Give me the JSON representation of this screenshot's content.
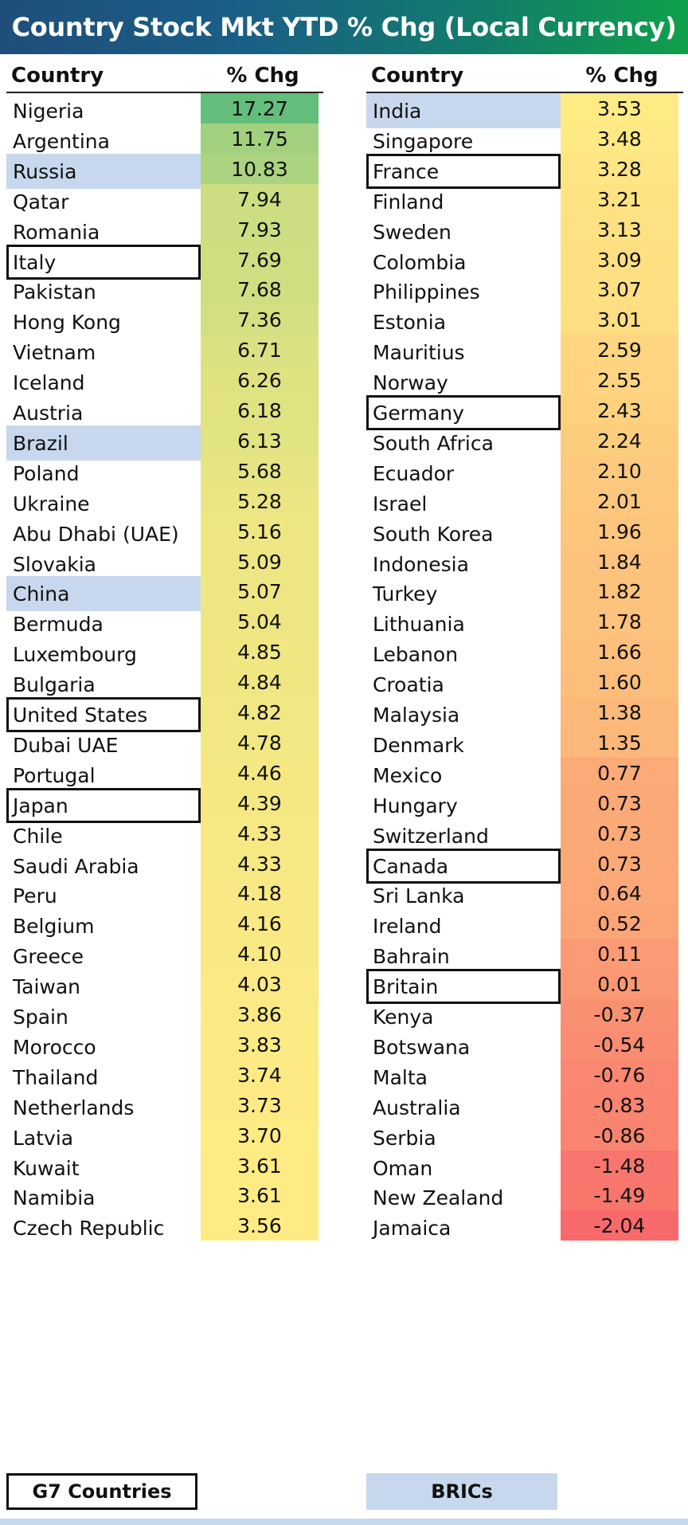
{
  "title": "Country Stock Mkt YTD % Chg (Local Currency)",
  "headers": {
    "country": "Country",
    "change": "% Chg"
  },
  "legend": {
    "g7": "G7 Countries",
    "brics": "BRICs"
  },
  "colors": {
    "high": "#63be7b",
    "mid": "#ffeb84",
    "low": "#f8696b",
    "brics": "#c7d8ee"
  },
  "chart_data": {
    "type": "table",
    "title": "Country Stock Mkt YTD % Chg (Local Currency)",
    "columns": [
      "Country",
      "% Chg"
    ],
    "color_scale": {
      "min": -2.04,
      "mid": 3.55,
      "max": 17.27
    },
    "left": [
      {
        "country": "Nigeria",
        "value": "17.27"
      },
      {
        "country": "Argentina",
        "value": "11.75"
      },
      {
        "country": "Russia",
        "value": "10.83",
        "brics": true
      },
      {
        "country": "Qatar",
        "value": "7.94"
      },
      {
        "country": "Romania",
        "value": "7.93"
      },
      {
        "country": "Italy",
        "value": "7.69",
        "g7": true
      },
      {
        "country": "Pakistan",
        "value": "7.68"
      },
      {
        "country": "Hong Kong",
        "value": "7.36"
      },
      {
        "country": "Vietnam",
        "value": "6.71"
      },
      {
        "country": "Iceland",
        "value": "6.26"
      },
      {
        "country": "Austria",
        "value": "6.18"
      },
      {
        "country": "Brazil",
        "value": "6.13",
        "brics": true
      },
      {
        "country": "Poland",
        "value": "5.68"
      },
      {
        "country": "Ukraine",
        "value": "5.28"
      },
      {
        "country": "Abu Dhabi (UAE)",
        "value": "5.16"
      },
      {
        "country": "Slovakia",
        "value": "5.09"
      },
      {
        "country": "China",
        "value": "5.07",
        "brics": true
      },
      {
        "country": "Bermuda",
        "value": "5.04"
      },
      {
        "country": "Luxembourg",
        "value": "4.85"
      },
      {
        "country": "Bulgaria",
        "value": "4.84"
      },
      {
        "country": "United States",
        "value": "4.82",
        "g7": true
      },
      {
        "country": "Dubai UAE",
        "value": "4.78"
      },
      {
        "country": "Portugal",
        "value": "4.46"
      },
      {
        "country": "Japan",
        "value": "4.39",
        "g7": true
      },
      {
        "country": "Chile",
        "value": "4.33"
      },
      {
        "country": "Saudi Arabia",
        "value": "4.33"
      },
      {
        "country": "Peru",
        "value": "4.18"
      },
      {
        "country": "Belgium",
        "value": "4.16"
      },
      {
        "country": "Greece",
        "value": "4.10"
      },
      {
        "country": "Taiwan",
        "value": "4.03"
      },
      {
        "country": "Spain",
        "value": "3.86"
      },
      {
        "country": "Morocco",
        "value": "3.83"
      },
      {
        "country": "Thailand",
        "value": "3.74"
      },
      {
        "country": "Netherlands",
        "value": "3.73"
      },
      {
        "country": "Latvia",
        "value": "3.70"
      },
      {
        "country": "Kuwait",
        "value": "3.61"
      },
      {
        "country": "Namibia",
        "value": "3.61"
      },
      {
        "country": "Czech Republic",
        "value": "3.56"
      }
    ],
    "right": [
      {
        "country": "India",
        "value": "3.53",
        "brics": true
      },
      {
        "country": "Singapore",
        "value": "3.48"
      },
      {
        "country": "France",
        "value": "3.28",
        "g7": true
      },
      {
        "country": "Finland",
        "value": "3.21"
      },
      {
        "country": "Sweden",
        "value": "3.13"
      },
      {
        "country": "Colombia",
        "value": "3.09"
      },
      {
        "country": "Philippines",
        "value": "3.07"
      },
      {
        "country": "Estonia",
        "value": "3.01"
      },
      {
        "country": "Mauritius",
        "value": "2.59"
      },
      {
        "country": "Norway",
        "value": "2.55"
      },
      {
        "country": "Germany",
        "value": "2.43",
        "g7": true
      },
      {
        "country": "South Africa",
        "value": "2.24"
      },
      {
        "country": "Ecuador",
        "value": "2.10"
      },
      {
        "country": "Israel",
        "value": "2.01"
      },
      {
        "country": "South Korea",
        "value": "1.96"
      },
      {
        "country": "Indonesia",
        "value": "1.84"
      },
      {
        "country": "Turkey",
        "value": "1.82"
      },
      {
        "country": "Lithuania",
        "value": "1.78"
      },
      {
        "country": "Lebanon",
        "value": "1.66"
      },
      {
        "country": "Croatia",
        "value": "1.60"
      },
      {
        "country": "Malaysia",
        "value": "1.38"
      },
      {
        "country": "Denmark",
        "value": "1.35"
      },
      {
        "country": "Mexico",
        "value": "0.77"
      },
      {
        "country": "Hungary",
        "value": "0.73"
      },
      {
        "country": "Switzerland",
        "value": "0.73"
      },
      {
        "country": "Canada",
        "value": "0.73",
        "g7": true
      },
      {
        "country": "Sri Lanka",
        "value": "0.64"
      },
      {
        "country": "Ireland",
        "value": "0.52"
      },
      {
        "country": "Bahrain",
        "value": "0.11"
      },
      {
        "country": "Britain",
        "value": "0.01",
        "g7": true
      },
      {
        "country": "Kenya",
        "value": "-0.37"
      },
      {
        "country": "Botswana",
        "value": "-0.54"
      },
      {
        "country": "Malta",
        "value": "-0.76"
      },
      {
        "country": "Australia",
        "value": "-0.83"
      },
      {
        "country": "Serbia",
        "value": "-0.86"
      },
      {
        "country": "Oman",
        "value": "-1.48"
      },
      {
        "country": "New Zealand",
        "value": "-1.49"
      },
      {
        "country": "Jamaica",
        "value": "-2.04"
      }
    ]
  }
}
